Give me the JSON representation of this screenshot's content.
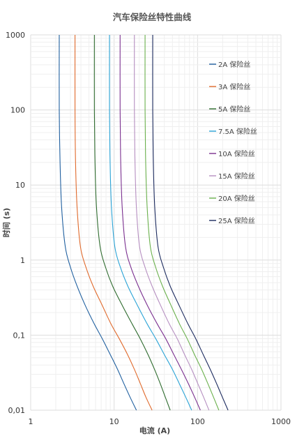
{
  "chart_data": {
    "type": "line",
    "title": "汽车保险丝特性曲线",
    "xlabel": "电流 (A)",
    "ylabel": "时间 (s)",
    "x_scale": "log",
    "y_scale": "log",
    "xlim": [
      1,
      1000
    ],
    "ylim": [
      0.01,
      1000
    ],
    "x_ticks": [
      {
        "value": 1,
        "label": "1"
      },
      {
        "value": 10,
        "label": "10"
      },
      {
        "value": 100,
        "label": "100"
      },
      {
        "value": 1000,
        "label": "1000"
      }
    ],
    "y_ticks": [
      {
        "value": 1000,
        "label": "1000"
      },
      {
        "value": 100,
        "label": "100"
      },
      {
        "value": 10,
        "label": "10"
      },
      {
        "value": 1,
        "label": "1"
      },
      {
        "value": 0.1,
        "label": "0,1"
      },
      {
        "value": 0.01,
        "label": "0,01"
      }
    ],
    "grid": true,
    "legend_position": "top-right",
    "series": [
      {
        "name": "2A 保险丝",
        "color": "#1f5f9f",
        "x": [
          2.2,
          2.2,
          2.25,
          2.35,
          2.6,
          3.0,
          3.6,
          4.5,
          5.8,
          7.2,
          9.0,
          11.0,
          13.0,
          15.5,
          18.5
        ],
        "y": [
          1000,
          100,
          20,
          5,
          1.5,
          0.8,
          0.45,
          0.25,
          0.14,
          0.09,
          0.055,
          0.035,
          0.023,
          0.015,
          0.01
        ]
      },
      {
        "name": "3A 保险丝",
        "color": "#e06a2c",
        "x": [
          3.4,
          3.4,
          3.45,
          3.6,
          3.95,
          4.6,
          5.6,
          7.2,
          9.2,
          11.5,
          14.5,
          17.5,
          20.5,
          24.0,
          28.5
        ],
        "y": [
          1000,
          100,
          20,
          5,
          1.5,
          0.8,
          0.45,
          0.25,
          0.14,
          0.09,
          0.055,
          0.035,
          0.023,
          0.015,
          0.01
        ]
      },
      {
        "name": "5A 保险丝",
        "color": "#2e6b2e",
        "x": [
          5.8,
          5.8,
          5.9,
          6.15,
          6.8,
          7.9,
          9.6,
          12.5,
          16.5,
          20.5,
          25.5,
          30.5,
          35.5,
          41.0,
          47.0
        ],
        "y": [
          1000,
          100,
          20,
          5,
          1.5,
          0.8,
          0.45,
          0.25,
          0.14,
          0.09,
          0.055,
          0.035,
          0.023,
          0.015,
          0.01
        ]
      },
      {
        "name": "7.5A 保险丝",
        "color": "#2aa3d6",
        "x": [
          8.8,
          8.8,
          8.95,
          9.3,
          10.2,
          11.9,
          14.6,
          19.0,
          25.0,
          31.5,
          40.0,
          50.0,
          60.0,
          72.0,
          85.0
        ],
        "y": [
          1000,
          100,
          20,
          5,
          1.5,
          0.8,
          0.45,
          0.25,
          0.14,
          0.09,
          0.055,
          0.035,
          0.023,
          0.015,
          0.01
        ]
      },
      {
        "name": "10A 保险丝",
        "color": "#7a2f8f",
        "x": [
          11.8,
          11.8,
          12.0,
          12.5,
          13.7,
          15.9,
          19.5,
          25.0,
          33.0,
          41.5,
          52.0,
          64.0,
          77.0,
          92.0,
          108.0
        ],
        "y": [
          1000,
          100,
          20,
          5,
          1.5,
          0.8,
          0.45,
          0.25,
          0.14,
          0.09,
          0.055,
          0.035,
          0.023,
          0.015,
          0.01
        ]
      },
      {
        "name": "15A 保险丝",
        "color": "#b58ec0",
        "x": [
          17.5,
          17.5,
          17.8,
          18.5,
          20.2,
          23.5,
          28.5,
          36.0,
          46.0,
          57.0,
          70.0,
          85.0,
          100.0,
          118.0,
          137.0
        ],
        "y": [
          1000,
          100,
          20,
          5,
          1.5,
          0.8,
          0.45,
          0.25,
          0.14,
          0.09,
          0.055,
          0.035,
          0.023,
          0.015,
          0.01
        ]
      },
      {
        "name": "20A 保险丝",
        "color": "#6ab04c",
        "x": [
          23.5,
          23.5,
          23.9,
          24.9,
          27.2,
          31.5,
          38.0,
          48.0,
          61.0,
          75.0,
          92.0,
          112.0,
          132.0,
          155.0,
          180.0
        ],
        "y": [
          1000,
          100,
          20,
          5,
          1.5,
          0.8,
          0.45,
          0.25,
          0.14,
          0.09,
          0.055,
          0.035,
          0.023,
          0.015,
          0.01
        ]
      },
      {
        "name": "25A 保险丝",
        "color": "#1b2a5e",
        "x": [
          29.0,
          29.0,
          29.5,
          30.7,
          33.6,
          39.0,
          47.0,
          60.0,
          77.0,
          95.0,
          117.0,
          142.0,
          168.0,
          198.0,
          232.0
        ],
        "y": [
          1000,
          100,
          20,
          5,
          1.5,
          0.8,
          0.45,
          0.25,
          0.14,
          0.09,
          0.055,
          0.035,
          0.023,
          0.015,
          0.01
        ]
      }
    ]
  }
}
